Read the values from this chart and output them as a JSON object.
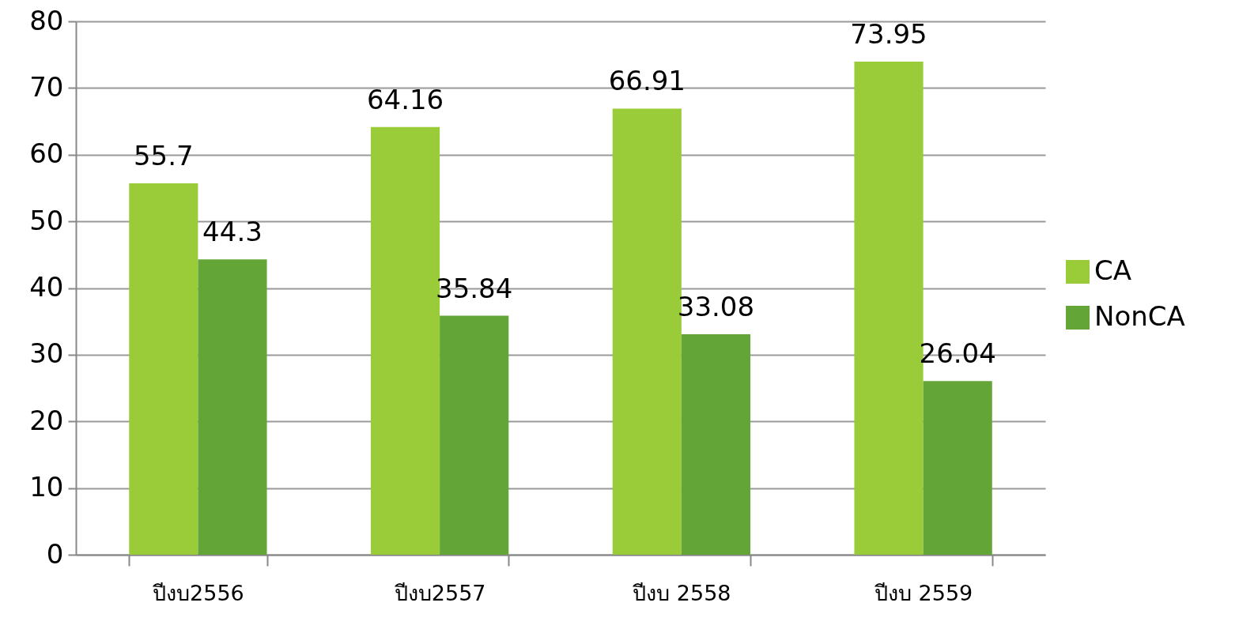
{
  "chart_data": {
    "type": "bar",
    "categories": [
      "ปีงบ2556",
      "ปีงบ2557",
      "ปีงบ 2558",
      "ปีงบ 2559"
    ],
    "series": [
      {
        "name": "CA",
        "color": "#9acb38",
        "values": [
          55.7,
          64.16,
          66.91,
          73.95
        ]
      },
      {
        "name": "NonCA",
        "color": "#63a537",
        "values": [
          44.3,
          35.84,
          33.08,
          26.04
        ]
      }
    ],
    "ylim": [
      0,
      80
    ],
    "yticks": [
      0,
      10,
      20,
      30,
      40,
      50,
      60,
      70,
      80
    ],
    "grid": "y",
    "legend": "right",
    "data_labels": true
  }
}
